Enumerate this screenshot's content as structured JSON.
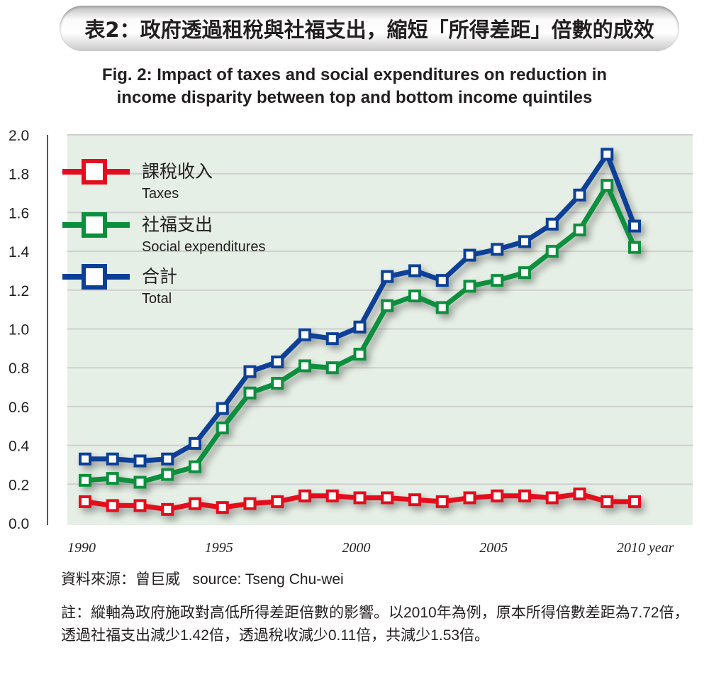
{
  "header": {
    "title_zh": "表2：政府透過租稅與社福支出，縮短「所得差距」倍數的成效",
    "title_en_line1": "Fig. 2: Impact of taxes and social expenditures on reduction in",
    "title_en_line2": "income disparity between top and bottom income quintiles"
  },
  "chart_data": {
    "type": "line",
    "x": [
      1990,
      1991,
      1992,
      1993,
      1994,
      1995,
      1996,
      1997,
      1998,
      1999,
      2000,
      2001,
      2002,
      2003,
      2004,
      2005,
      2006,
      2007,
      2008,
      2009,
      2010
    ],
    "xticks": [
      1990,
      1995,
      2000,
      2005,
      2010
    ],
    "xtick_labels": [
      "1990",
      "1995",
      "2000",
      "2005",
      "2010 year"
    ],
    "ylim": [
      0,
      2.0
    ],
    "yticks": [
      "0.0",
      "0.2",
      "0.4",
      "0.6",
      "0.8",
      "1.0",
      "1.2",
      "1.4",
      "1.6",
      "1.8",
      "2.0"
    ],
    "grid": true,
    "legend_position": "top-left",
    "series": [
      {
        "name": "課稅收入",
        "name_en": "Taxes",
        "color": "#e30d1f",
        "values": [
          0.11,
          0.09,
          0.09,
          0.07,
          0.1,
          0.08,
          0.1,
          0.11,
          0.14,
          0.14,
          0.13,
          0.13,
          0.12,
          0.11,
          0.13,
          0.14,
          0.14,
          0.13,
          0.15,
          0.11,
          0.11
        ]
      },
      {
        "name": "社福支出",
        "name_en": "Social expenditures",
        "color": "#0a8f3c",
        "values": [
          0.22,
          0.23,
          0.21,
          0.25,
          0.29,
          0.49,
          0.67,
          0.72,
          0.81,
          0.8,
          0.87,
          1.12,
          1.17,
          1.11,
          1.22,
          1.25,
          1.29,
          1.4,
          1.51,
          1.74,
          1.42
        ]
      },
      {
        "name": "合計",
        "name_en": "Total",
        "color": "#0b3f96",
        "values": [
          0.33,
          0.33,
          0.32,
          0.33,
          0.41,
          0.59,
          0.78,
          0.83,
          0.97,
          0.95,
          1.01,
          1.27,
          1.3,
          1.25,
          1.38,
          1.41,
          1.45,
          1.54,
          1.69,
          1.9,
          1.53
        ]
      }
    ]
  },
  "footer": {
    "source": "資料來源：曾巨威   source: Tseng Chu-wei",
    "note": "註：縱軸為政府施政對高低所得差距倍數的影響。以2010年為例，原本所得倍數差距為7.72倍，透過社福支出減少1.42倍，透過稅收減少0.11倍，共減少1.53倍。"
  }
}
